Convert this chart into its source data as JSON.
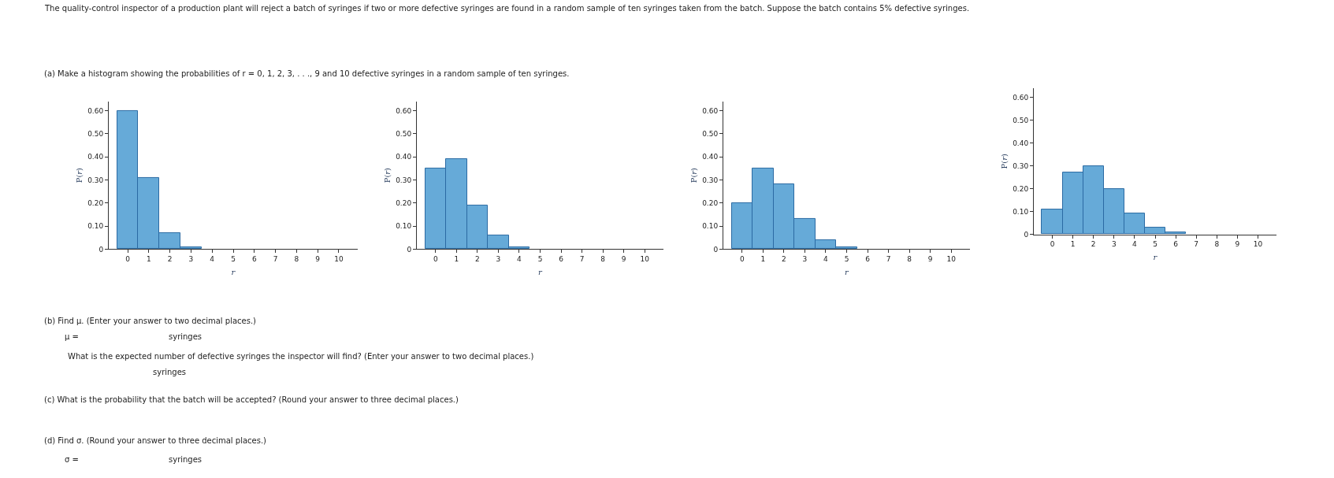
{
  "chart_data": [
    {
      "type": "histogram",
      "xlabel": "r",
      "ylabel": "P(r)",
      "color": "#66aad8",
      "bins": [
        -0.5,
        0.5,
        1.5,
        2.5,
        3.5,
        4.5,
        5.5,
        6.5,
        7.5,
        8.5,
        9.5,
        10.5
      ],
      "values": [
        0.6,
        0.31,
        0.07,
        0.01,
        0.0,
        0.0,
        0.0,
        0.0,
        0.0,
        0.0,
        0.0
      ],
      "xlim": [
        -0.9,
        10.9
      ],
      "xticks": [
        0,
        1,
        2,
        3,
        4,
        5,
        6,
        7,
        8,
        9,
        10
      ],
      "ylim": [
        0,
        0.64
      ],
      "yticks": [
        0,
        {
          "value": 0.1,
          "label": "0.10"
        },
        {
          "value": 0.2,
          "label": "0.20"
        },
        {
          "value": 0.3,
          "label": "0.30"
        },
        {
          "value": 0.4,
          "label": "0.40"
        },
        {
          "value": 0.5,
          "label": "0.50"
        },
        {
          "value": 0.6,
          "label": "0.60"
        }
      ],
      "annotations": [
        "The quality-control inspector of a production plant will reject a batch of syringes if two or more defective syringes are found in a random sample of ten syringes taken from the batch. Suppose the batch contains 5% defective syringes.",
        "(a) Make a histogram showing the probabilities of r = 0, 1, 2, 3, . . ., 9 and 10 defective syringes in a random sample of ten syringes.",
        "(b) Find μ. (Enter your answer to two decimal places.)",
        "μ =",
        "syringes",
        "What is the expected number of defective syringes the inspector will find? (Enter your answer to two decimal places.)",
        "syringes",
        "(c) What is the probability that the batch will be accepted? (Round your answer to three decimal places.)",
        "(d) Find σ. (Round your answer to three decimal places.)",
        "σ =",
        "syringes"
      ]
    },
    {
      "type": "histogram",
      "xlabel": "r",
      "ylabel": "P(r)",
      "color": "#66aad8",
      "bins": [
        -0.5,
        0.5,
        1.5,
        2.5,
        3.5,
        4.5,
        5.5,
        6.5,
        7.5,
        8.5,
        9.5,
        10.5
      ],
      "values": [
        0.35,
        0.39,
        0.19,
        0.06,
        0.01,
        0.0,
        0.0,
        0.0,
        0.0,
        0.0,
        0.0
      ],
      "xlim": [
        -0.9,
        10.9
      ],
      "xticks": [
        0,
        1,
        2,
        3,
        4,
        5,
        6,
        7,
        8,
        9,
        10
      ],
      "ylim": [
        0,
        0.64
      ],
      "yticks": [
        0,
        {
          "value": 0.1,
          "label": "0.10"
        },
        {
          "value": 0.2,
          "label": "0.20"
        },
        {
          "value": 0.3,
          "label": "0.30"
        },
        {
          "value": 0.4,
          "label": "0.40"
        },
        {
          "value": 0.5,
          "label": "0.50"
        },
        {
          "value": 0.6,
          "label": "0.60"
        }
      ]
    },
    {
      "type": "histogram",
      "xlabel": "r",
      "ylabel": "P(r)",
      "color": "#66aad8",
      "bins": [
        -0.5,
        0.5,
        1.5,
        2.5,
        3.5,
        4.5,
        5.5,
        6.5,
        7.5,
        8.5,
        9.5,
        10.5
      ],
      "values": [
        0.2,
        0.35,
        0.28,
        0.13,
        0.04,
        0.01,
        0.0,
        0.0,
        0.0,
        0.0,
        0.0
      ],
      "xlim": [
        -0.9,
        10.9
      ],
      "xticks": [
        0,
        1,
        2,
        3,
        4,
        5,
        6,
        7,
        8,
        9,
        10
      ],
      "ylim": [
        0,
        0.64
      ],
      "yticks": [
        0,
        {
          "value": 0.1,
          "label": "0.10"
        },
        {
          "value": 0.2,
          "label": "0.20"
        },
        {
          "value": 0.3,
          "label": "0.30"
        },
        {
          "value": 0.4,
          "label": "0.40"
        },
        {
          "value": 0.5,
          "label": "0.50"
        },
        {
          "value": 0.6,
          "label": "0.60"
        }
      ]
    },
    {
      "type": "histogram",
      "xlabel": "r",
      "ylabel": "P(r)",
      "color": "#66aad8",
      "bins": [
        -0.5,
        0.5,
        1.5,
        2.5,
        3.5,
        4.5,
        5.5,
        6.5,
        7.5,
        8.5,
        9.5,
        10.5
      ],
      "values": [
        0.11,
        0.27,
        0.3,
        0.2,
        0.09,
        0.03,
        0.01,
        0.0,
        0.0,
        0.0,
        0.0
      ],
      "xlim": [
        -0.9,
        10.9
      ],
      "xticks": [
        0,
        1,
        2,
        3,
        4,
        5,
        6,
        7,
        8,
        9,
        10
      ],
      "ylim": [
        0,
        0.64
      ],
      "yticks": [
        0,
        {
          "value": 0.1,
          "label": "0.10"
        },
        {
          "value": 0.2,
          "label": "0.20"
        },
        {
          "value": 0.3,
          "label": "0.30"
        },
        {
          "value": 0.4,
          "label": "0.40"
        },
        {
          "value": 0.5,
          "label": "0.50"
        },
        {
          "value": 0.6,
          "label": "0.60"
        }
      ]
    }
  ]
}
